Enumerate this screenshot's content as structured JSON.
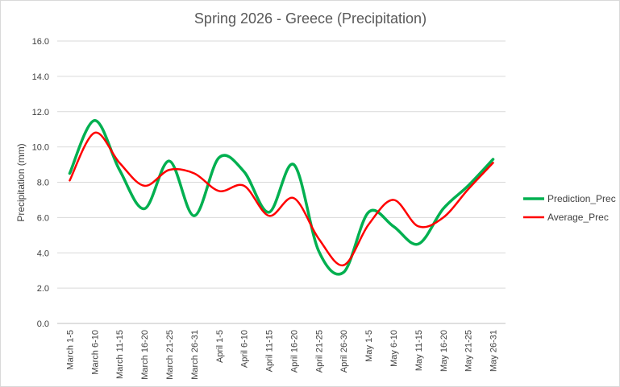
{
  "chart_data": {
    "type": "line",
    "title": "Spring 2026 - Greece (Precipitation)",
    "xlabel": "",
    "ylabel": "Precipitation (mm)",
    "ylim": [
      0,
      16
    ],
    "yticks": [
      "0.0",
      "2.0",
      "4.0",
      "6.0",
      "8.0",
      "10.0",
      "12.0",
      "14.0",
      "16.0"
    ],
    "grid": true,
    "smooth": true,
    "legend_position": "right",
    "categories": [
      "March 1-5",
      "March 6-10",
      "March 11-15",
      "March 16-20",
      "March 21-25",
      "March 26-31",
      "April 1-5",
      "April 6-10",
      "April 11-15",
      "April 16-20",
      "April 21-25",
      "April 26-30",
      "May 1-5",
      "May 6-10",
      "May 11-15",
      "May 16-20",
      "May 21-25",
      "May 26-31"
    ],
    "series": [
      {
        "name": "Prediction_Prec",
        "color": "#00b050",
        "values": [
          8.5,
          11.5,
          8.7,
          6.5,
          9.2,
          6.1,
          9.4,
          8.6,
          6.3,
          9.0,
          4.1,
          2.9,
          6.3,
          5.5,
          4.5,
          6.5,
          7.8,
          9.3
        ]
      },
      {
        "name": "Average_Prec",
        "color": "#ff0000",
        "values": [
          8.1,
          10.8,
          9.1,
          7.8,
          8.7,
          8.5,
          7.5,
          7.8,
          6.1,
          7.1,
          4.8,
          3.3,
          5.6,
          7.0,
          5.5,
          6.0,
          7.6,
          9.1
        ]
      }
    ]
  }
}
